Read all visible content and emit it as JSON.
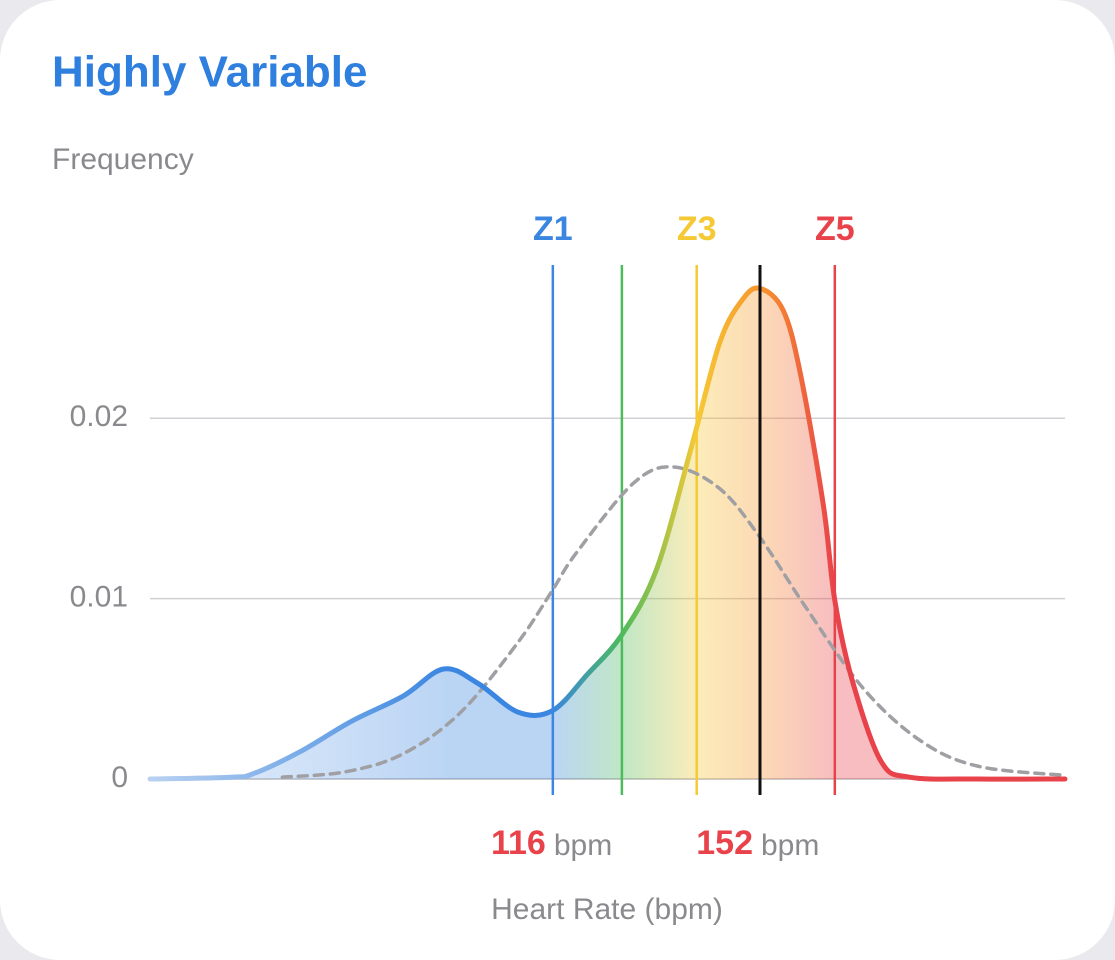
{
  "chart_data": {
    "type": "line",
    "title": "Highly Variable",
    "y_label": "Frequency",
    "x_label": "Heart Rate (bpm)",
    "xlim": [
      46,
      205
    ],
    "ylim": [
      0,
      0.0285
    ],
    "yticks": [
      0,
      0.01,
      0.02
    ],
    "grid": true,
    "series": [
      {
        "color": "gradient",
        "style": "solid",
        "fill": true,
        "x": [
          46,
          60,
          64,
          72,
          81,
          90,
          97,
          103,
          110,
          116,
          122,
          128,
          134,
          140,
          145,
          149,
          152,
          156,
          159,
          163,
          165,
          168,
          173,
          178,
          190,
          205
        ],
        "values": [
          0,
          0.0001,
          0.0003,
          0.0015,
          0.0032,
          0.0046,
          0.0061,
          0.0053,
          0.0037,
          0.0038,
          0.0058,
          0.008,
          0.0116,
          0.0183,
          0.0242,
          0.0266,
          0.0272,
          0.026,
          0.0225,
          0.0152,
          0.0099,
          0.0055,
          0.001,
          0.0001,
          0,
          0
        ]
      },
      {
        "color": "#a0a0a4",
        "style": "dashed",
        "fill": false,
        "x": [
          69,
          80,
          90,
          100,
          110,
          116,
          120,
          130,
          137,
          145,
          152,
          160,
          170,
          180,
          190,
          205
        ],
        "values": [
          0.0001,
          0.0004,
          0.0014,
          0.0037,
          0.0076,
          0.0105,
          0.0125,
          0.0164,
          0.0173,
          0.0161,
          0.0134,
          0.0095,
          0.005,
          0.0021,
          0.0007,
          0.0002
        ]
      }
    ],
    "zones": [
      {
        "label": "Z1",
        "x": 116,
        "color": "#3a86e0"
      },
      {
        "x": 128,
        "color": "#4cbb5c"
      },
      {
        "label": "Z3",
        "x": 141,
        "color": "#f5c936"
      },
      {
        "label": "Z5",
        "x": 165,
        "color": "#e8424a"
      }
    ],
    "x_markers": [
      {
        "value": 116,
        "unit": "bpm",
        "color": "#e8424a"
      },
      {
        "value": 152,
        "unit": "bpm",
        "color": "#e8424a",
        "line_color": "#111111"
      }
    ]
  }
}
